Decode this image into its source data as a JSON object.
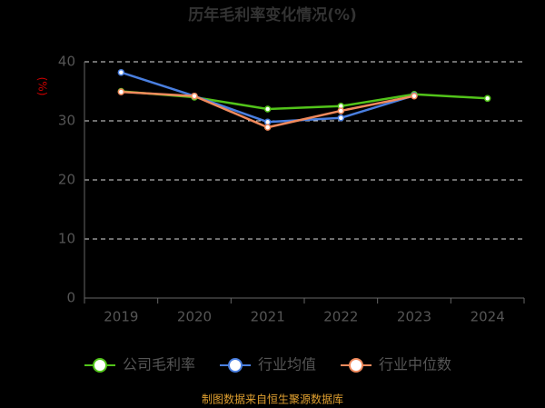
{
  "chart_data": {
    "type": "line",
    "title": "历年毛利率变化情况(%)",
    "y_label": "(%)",
    "categories": [
      "2019",
      "2020",
      "2021",
      "2022",
      "2023",
      "2024"
    ],
    "series": [
      {
        "name": "公司毛利率",
        "color": "#52c41a",
        "values": [
          35.0,
          34.0,
          32.0,
          32.5,
          34.5,
          33.8
        ]
      },
      {
        "name": "行业均值",
        "color": "#4a7fe0",
        "values": [
          38.2,
          34.2,
          29.8,
          30.5,
          34.3,
          null
        ]
      },
      {
        "name": "行业中位数",
        "color": "#f08a5d",
        "values": [
          34.9,
          34.2,
          28.9,
          31.7,
          34.2,
          null
        ]
      }
    ],
    "ylim": [
      0,
      40
    ],
    "yticks": [
      0,
      10,
      20,
      30,
      40
    ],
    "grid": true,
    "source": "制图数据来自恒生聚源数据库"
  }
}
